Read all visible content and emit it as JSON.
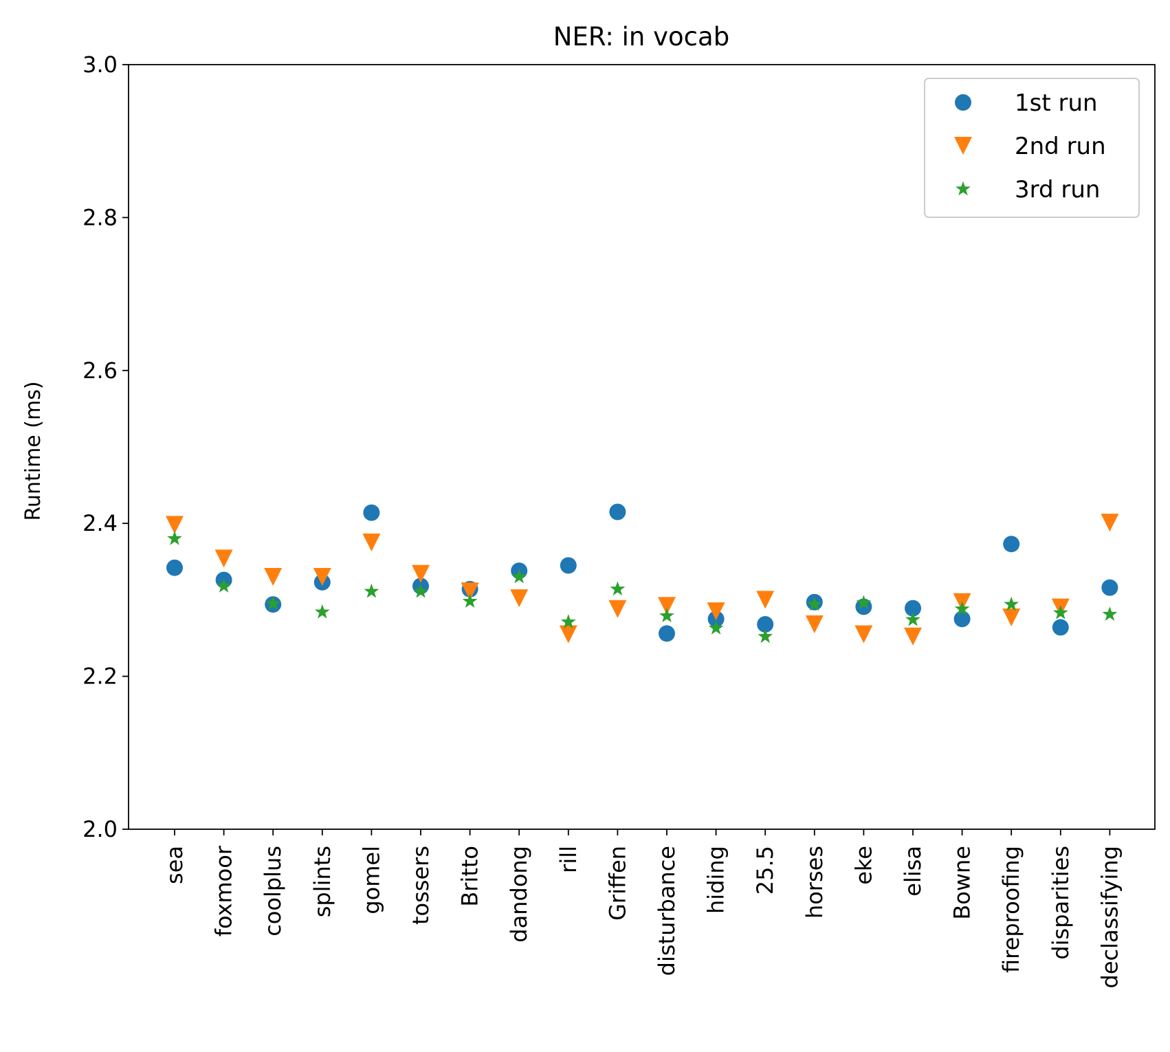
{
  "chart_data": {
    "type": "scatter",
    "title": "NER: in vocab",
    "xlabel": "",
    "ylabel": "Runtime (ms)",
    "ylim": [
      2.0,
      3.0
    ],
    "yticks": [
      "2.0",
      "2.2",
      "2.4",
      "2.6",
      "2.8",
      "3.0"
    ],
    "categories": [
      "sea",
      "foxmoor",
      "coolplus",
      "splints",
      "gomel",
      "tossers",
      "Britto",
      "dandong",
      "rill",
      "Griffen",
      "disturbance",
      "hiding",
      "25.5",
      "horses",
      "eke",
      "elisa",
      "Bowne",
      "fireproofing",
      "disparities",
      "declassifying"
    ],
    "series": [
      {
        "name": "1st run",
        "marker": "circle",
        "color": "#1f77b4",
        "values": [
          2.342,
          2.326,
          2.294,
          2.323,
          2.414,
          2.318,
          2.314,
          2.338,
          2.345,
          2.415,
          2.256,
          2.275,
          2.268,
          2.297,
          2.291,
          2.289,
          2.275,
          2.373,
          2.264,
          2.316
        ]
      },
      {
        "name": "2nd run",
        "marker": "triangle_down",
        "color": "#ff7f0e",
        "values": [
          2.398,
          2.354,
          2.33,
          2.33,
          2.375,
          2.334,
          2.311,
          2.302,
          2.255,
          2.288,
          2.292,
          2.285,
          2.3,
          2.268,
          2.255,
          2.252,
          2.297,
          2.277,
          2.29,
          2.401
        ]
      },
      {
        "name": "3rd run",
        "marker": "star",
        "color": "#2ca02c",
        "values": [
          2.38,
          2.318,
          2.295,
          2.284,
          2.311,
          2.311,
          2.298,
          2.33,
          2.271,
          2.314,
          2.279,
          2.263,
          2.252,
          2.294,
          2.296,
          2.274,
          2.288,
          2.294,
          2.283,
          2.281
        ]
      }
    ],
    "grid": false,
    "legend_position": "top-right"
  }
}
